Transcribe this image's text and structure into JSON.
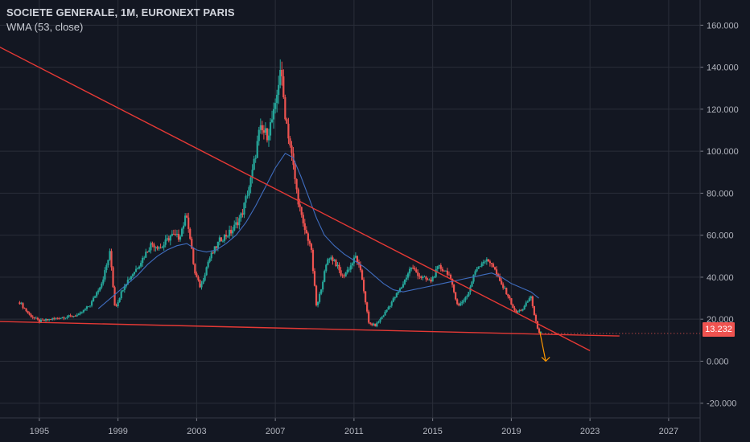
{
  "header": {
    "symbol_line": "SOCIETE GENERALE, 1M, EURONEXT PARIS",
    "indicator_line": "WMA (53, close)"
  },
  "last_price_label": "13.232",
  "colors": {
    "background": "#131722",
    "grid": "#2a2e39",
    "text": "#b2b5be",
    "up": "#26a69a",
    "down": "#ef5350",
    "wma": "#3f6dbf",
    "trendline": "#e53935",
    "projection_arrow": "#ff9800",
    "price_tag": "#ef5350"
  },
  "chart_data": {
    "type": "candlestick",
    "title": "SOCIETE GENERALE, 1M, EURONEXT PARIS",
    "indicator": "WMA (53, close)",
    "ylim": [
      -27,
      172
    ],
    "xlim": [
      1993.0,
      2028.6
    ],
    "y_ticks": [
      "160.000",
      "140.000",
      "120.000",
      "100.000",
      "80.000",
      "60.000",
      "40.000",
      "20.000",
      "0.000",
      "-20.000"
    ],
    "y_tick_values": [
      160,
      140,
      120,
      100,
      80,
      60,
      40,
      20,
      0,
      -20
    ],
    "x_ticks": [
      "1995",
      "1999",
      "2003",
      "2007",
      "2011",
      "2015",
      "2019",
      "2023",
      "2027"
    ],
    "x_tick_values": [
      1995,
      1999,
      2003,
      2007,
      2011,
      2015,
      2019,
      2023,
      2027
    ],
    "grid": true,
    "last_price": 13.232,
    "price_path": [
      [
        1994.0,
        28
      ],
      [
        1994.5,
        22
      ],
      [
        1995.0,
        19
      ],
      [
        1995.6,
        20
      ],
      [
        1996.3,
        21
      ],
      [
        1997.0,
        22
      ],
      [
        1997.6,
        27
      ],
      [
        1998.2,
        38
      ],
      [
        1998.6,
        52
      ],
      [
        1998.85,
        25
      ],
      [
        1999.3,
        36
      ],
      [
        2000.0,
        45
      ],
      [
        2000.7,
        56
      ],
      [
        2001.2,
        54
      ],
      [
        2001.7,
        60
      ],
      [
        2002.1,
        59
      ],
      [
        2002.5,
        70
      ],
      [
        2002.9,
        42
      ],
      [
        2003.2,
        35
      ],
      [
        2003.6,
        48
      ],
      [
        2004.2,
        58
      ],
      [
        2004.8,
        62
      ],
      [
        2005.3,
        70
      ],
      [
        2005.8,
        88
      ],
      [
        2006.2,
        110
      ],
      [
        2006.6,
        108
      ],
      [
        2007.0,
        120
      ],
      [
        2007.25,
        140
      ],
      [
        2007.5,
        118
      ],
      [
        2007.8,
        100
      ],
      [
        2008.1,
        80
      ],
      [
        2008.4,
        65
      ],
      [
        2008.8,
        55
      ],
      [
        2009.1,
        25
      ],
      [
        2009.4,
        38
      ],
      [
        2009.7,
        50
      ],
      [
        2010.0,
        48
      ],
      [
        2010.4,
        40
      ],
      [
        2010.8,
        45
      ],
      [
        2011.1,
        50
      ],
      [
        2011.4,
        40
      ],
      [
        2011.75,
        18
      ],
      [
        2012.1,
        17
      ],
      [
        2012.5,
        22
      ],
      [
        2012.9,
        28
      ],
      [
        2013.4,
        35
      ],
      [
        2013.9,
        45
      ],
      [
        2014.4,
        40
      ],
      [
        2014.9,
        38
      ],
      [
        2015.3,
        45
      ],
      [
        2015.8,
        42
      ],
      [
        2016.3,
        26
      ],
      [
        2016.8,
        32
      ],
      [
        2017.2,
        44
      ],
      [
        2017.6,
        48
      ],
      [
        2018.0,
        47
      ],
      [
        2018.4,
        38
      ],
      [
        2018.8,
        32
      ],
      [
        2019.2,
        23
      ],
      [
        2019.6,
        25
      ],
      [
        2020.0,
        31
      ],
      [
        2020.2,
        20
      ],
      [
        2020.4,
        14
      ],
      [
        2020.55,
        13.2
      ]
    ],
    "series": [
      {
        "name": "WMA (53, close)",
        "x": [
          1998.0,
          1998.5,
          1999.0,
          1999.5,
          2000.0,
          2000.5,
          2001.0,
          2001.5,
          2002.0,
          2002.5,
          2003.0,
          2003.5,
          2004.0,
          2004.5,
          2005.0,
          2005.5,
          2006.0,
          2006.5,
          2007.0,
          2007.5,
          2007.9,
          2008.3,
          2008.7,
          2009.1,
          2009.5,
          2010.0,
          2010.5,
          2011.0,
          2011.5,
          2012.0,
          2012.5,
          2013.0,
          2013.5,
          2014.0,
          2014.5,
          2015.0,
          2015.5,
          2016.0,
          2016.5,
          2017.0,
          2017.5,
          2018.0,
          2018.5,
          2019.0,
          2019.5,
          2020.0,
          2020.4
        ],
        "values": [
          25,
          29,
          33,
          37,
          41,
          46,
          50,
          53,
          55,
          56,
          53,
          52,
          53,
          56,
          60,
          66,
          74,
          83,
          92,
          99,
          97,
          88,
          78,
          68,
          60,
          55,
          51,
          48,
          45,
          41,
          37,
          34,
          33,
          34,
          35,
          36,
          37,
          38,
          39,
          40,
          41,
          42,
          40,
          37,
          35,
          33,
          30
        ]
      }
    ],
    "annotations": [
      {
        "kind": "resistance_line",
        "from": [
          1992.9,
          150
        ],
        "to": [
          2023.0,
          5
        ]
      },
      {
        "kind": "support_line",
        "from": [
          1992.6,
          19
        ],
        "to": [
          2024.5,
          12
        ]
      },
      {
        "kind": "projection_arrow",
        "from": [
          2020.45,
          14
        ],
        "to": [
          2020.75,
          0
        ]
      }
    ]
  }
}
